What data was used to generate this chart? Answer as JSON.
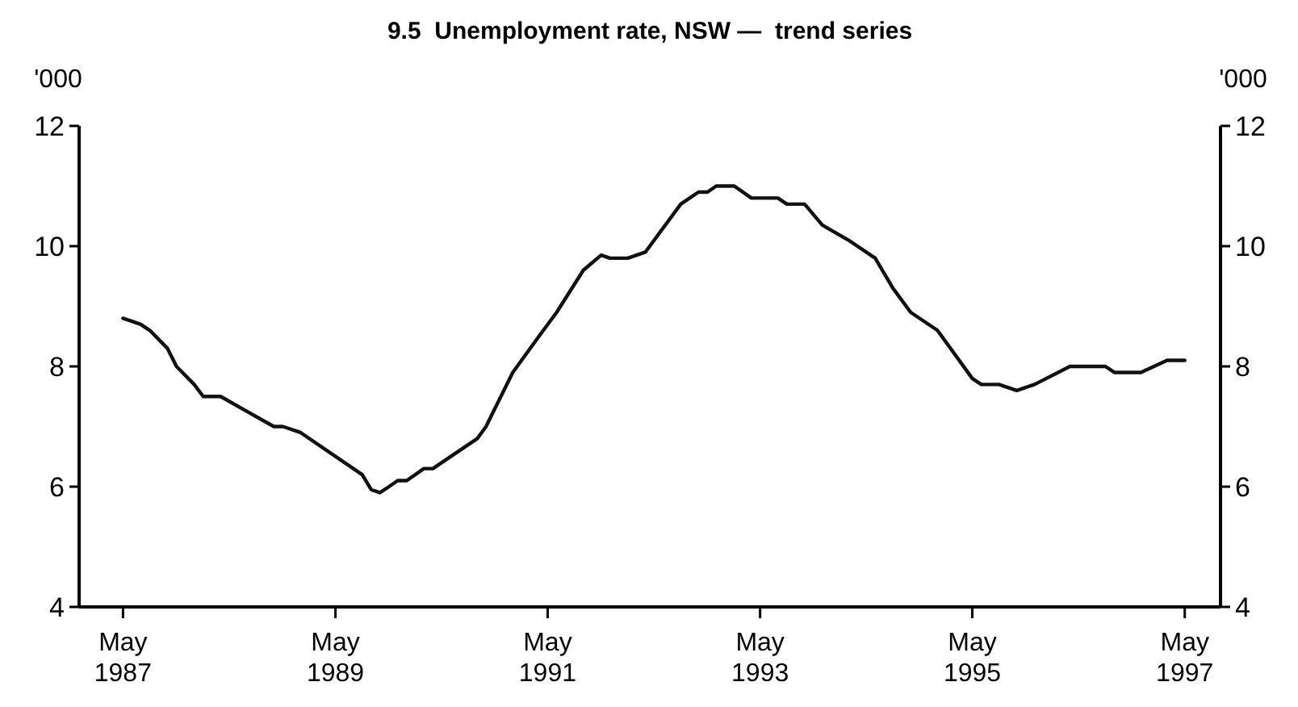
{
  "chart_data": {
    "type": "line",
    "title": "9.5  Unemployment rate, NSW —  trend series",
    "ylabel": "'000",
    "y2label": "'000",
    "x": [
      "1987-05",
      "1987-06",
      "1987-07",
      "1987-08",
      "1987-10",
      "1987-11",
      "1988-01",
      "1988-02",
      "1988-04",
      "1988-07",
      "1988-10",
      "1988-11",
      "1989-01",
      "1989-08",
      "1989-09",
      "1989-10",
      "1989-11",
      "1989-12",
      "1990-01",
      "1990-03",
      "1990-04",
      "1990-09",
      "1990-10",
      "1991-01",
      "1991-04",
      "1991-06",
      "1991-09",
      "1991-11",
      "1991-12",
      "1992-02",
      "1992-04",
      "1992-08",
      "1992-10",
      "1992-11",
      "1992-12",
      "1993-02",
      "1993-04",
      "1993-07",
      "1993-08",
      "1993-10",
      "1993-12",
      "1994-03",
      "1994-06",
      "1994-08",
      "1994-10",
      "1995-01",
      "1995-05",
      "1995-06",
      "1995-08",
      "1995-10",
      "1995-12",
      "1996-04",
      "1996-08",
      "1996-09",
      "1996-12",
      "1997-03",
      "1997-05"
    ],
    "series": [
      {
        "color": "#111111",
        "values": [
          8.8,
          8.75,
          8.7,
          8.6,
          8.3,
          8.0,
          7.7,
          7.5,
          7.5,
          7.25,
          7.0,
          7.0,
          6.9,
          6.2,
          5.95,
          5.9,
          6.0,
          6.1,
          6.1,
          6.3,
          6.3,
          6.8,
          7.0,
          7.9,
          8.5,
          8.9,
          9.6,
          9.85,
          9.8,
          9.8,
          9.9,
          10.7,
          10.9,
          10.9,
          11.0,
          11.0,
          10.8,
          10.8,
          10.7,
          10.7,
          10.35,
          10.1,
          9.8,
          9.3,
          8.9,
          8.6,
          7.8,
          7.7,
          7.7,
          7.6,
          7.7,
          8.0,
          8.0,
          7.9,
          7.9,
          8.1,
          8.1
        ]
      }
    ],
    "xlim": [
      "1986-12",
      "1997-09"
    ],
    "xticks": [
      {
        "value": "1987-05",
        "label": "May 1987"
      },
      {
        "value": "1989-05",
        "label": "May 1989"
      },
      {
        "value": "1991-05",
        "label": "May 1991"
      },
      {
        "value": "1993-05",
        "label": "May 1993"
      },
      {
        "value": "1995-05",
        "label": "May 1995"
      },
      {
        "value": "1997-05",
        "label": "May 1997"
      }
    ],
    "ylim": [
      4,
      12
    ],
    "yticks": [
      4,
      6,
      8,
      10,
      12
    ],
    "y2lim": [
      4,
      12
    ],
    "y2ticks": [
      4,
      6,
      8,
      10,
      12
    ],
    "grid": false,
    "marker": "none",
    "line_style": "solid"
  }
}
